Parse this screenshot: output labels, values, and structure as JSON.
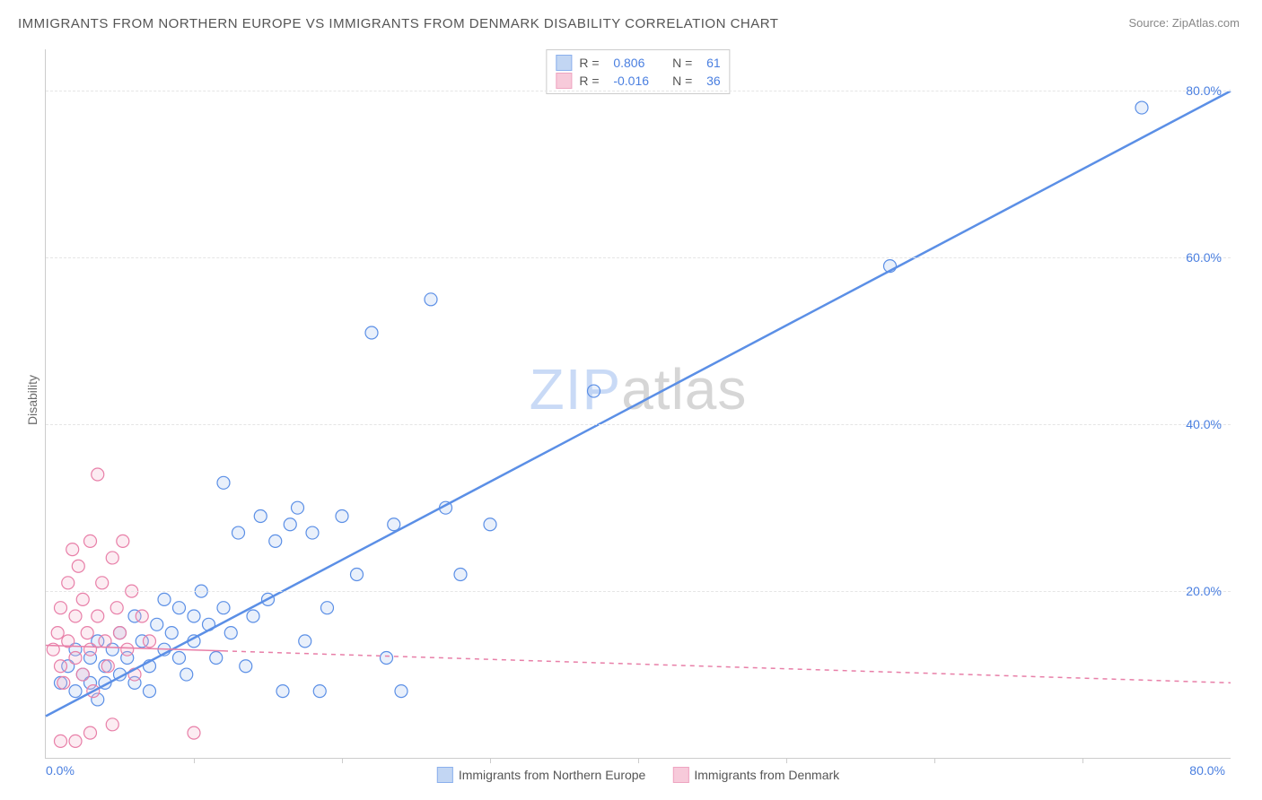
{
  "title": "IMMIGRANTS FROM NORTHERN EUROPE VS IMMIGRANTS FROM DENMARK DISABILITY CORRELATION CHART",
  "source_label": "Source: ",
  "source_name": "ZipAtlas.com",
  "ylabel": "Disability",
  "watermark": {
    "part1": "ZIP",
    "part2": "atlas"
  },
  "chart": {
    "type": "scatter",
    "xlim": [
      0,
      80
    ],
    "ylim": [
      0,
      85
    ],
    "xtick_start": "0.0%",
    "xtick_end": "80.0%",
    "xtick_marks": [
      10,
      20,
      30,
      40,
      50,
      60,
      70
    ],
    "yticks": [
      {
        "v": 20,
        "label": "20.0%"
      },
      {
        "v": 40,
        "label": "40.0%"
      },
      {
        "v": 60,
        "label": "60.0%"
      },
      {
        "v": 80,
        "label": "80.0%"
      }
    ],
    "grid_color": "#e5e5e5",
    "axis_color": "#cccccc",
    "ytick_color": "#4a7fe0",
    "xtick_color": "#4a7fe0",
    "marker_radius": 7,
    "marker_stroke_width": 1.2,
    "marker_fill_opacity": 0.25,
    "series": [
      {
        "id": "northern_europe",
        "name": "Immigrants from Northern Europe",
        "color": "#5b8fe6",
        "fill": "#a9c5ef",
        "R": "0.806",
        "N": "61",
        "trend": {
          "x1": 0,
          "y1": 5,
          "x2": 80,
          "y2": 80,
          "dash": "none",
          "width": 2.5
        },
        "points": [
          [
            1,
            9
          ],
          [
            1.5,
            11
          ],
          [
            2,
            8
          ],
          [
            2,
            13
          ],
          [
            2.5,
            10
          ],
          [
            3,
            9
          ],
          [
            3,
            12
          ],
          [
            3.5,
            7
          ],
          [
            3.5,
            14
          ],
          [
            4,
            11
          ],
          [
            4,
            9
          ],
          [
            4.5,
            13
          ],
          [
            5,
            10
          ],
          [
            5,
            15
          ],
          [
            5.5,
            12
          ],
          [
            6,
            9
          ],
          [
            6,
            17
          ],
          [
            6.5,
            14
          ],
          [
            7,
            11
          ],
          [
            7,
            8
          ],
          [
            7.5,
            16
          ],
          [
            8,
            13
          ],
          [
            8,
            19
          ],
          [
            8.5,
            15
          ],
          [
            9,
            12
          ],
          [
            9,
            18
          ],
          [
            9.5,
            10
          ],
          [
            10,
            17
          ],
          [
            10,
            14
          ],
          [
            10.5,
            20
          ],
          [
            11,
            16
          ],
          [
            11.5,
            12
          ],
          [
            12,
            18
          ],
          [
            12,
            33
          ],
          [
            12.5,
            15
          ],
          [
            13,
            27
          ],
          [
            13.5,
            11
          ],
          [
            14,
            17
          ],
          [
            14.5,
            29
          ],
          [
            15,
            19
          ],
          [
            15.5,
            26
          ],
          [
            16,
            8
          ],
          [
            16.5,
            28
          ],
          [
            17,
            30
          ],
          [
            17.5,
            14
          ],
          [
            18,
            27
          ],
          [
            18.5,
            8
          ],
          [
            19,
            18
          ],
          [
            20,
            29
          ],
          [
            21,
            22
          ],
          [
            22,
            51
          ],
          [
            23,
            12
          ],
          [
            23.5,
            28
          ],
          [
            24,
            8
          ],
          [
            26,
            55
          ],
          [
            27,
            30
          ],
          [
            28,
            22
          ],
          [
            30,
            28
          ],
          [
            37,
            44
          ],
          [
            57,
            59
          ],
          [
            74,
            78
          ]
        ]
      },
      {
        "id": "denmark",
        "name": "Immigrants from Denmark",
        "color": "#e87fa8",
        "fill": "#f4b4cb",
        "R": "-0.016",
        "N": "36",
        "trend": {
          "x1": 0,
          "y1": 13.5,
          "x2": 80,
          "y2": 9,
          "dash": "5,5",
          "width": 1.5
        },
        "trend_solid_until": 12,
        "points": [
          [
            0.5,
            13
          ],
          [
            0.8,
            15
          ],
          [
            1,
            11
          ],
          [
            1,
            18
          ],
          [
            1.2,
            9
          ],
          [
            1.5,
            21
          ],
          [
            1.5,
            14
          ],
          [
            1.8,
            25
          ],
          [
            2,
            12
          ],
          [
            2,
            17
          ],
          [
            2.2,
            23
          ],
          [
            2.5,
            10
          ],
          [
            2.5,
            19
          ],
          [
            2.8,
            15
          ],
          [
            3,
            26
          ],
          [
            3,
            13
          ],
          [
            3.2,
            8
          ],
          [
            3.5,
            34
          ],
          [
            3.5,
            17
          ],
          [
            3.8,
            21
          ],
          [
            4,
            14
          ],
          [
            4.2,
            11
          ],
          [
            4.5,
            24
          ],
          [
            4.8,
            18
          ],
          [
            5,
            15
          ],
          [
            5.2,
            26
          ],
          [
            5.5,
            13
          ],
          [
            5.8,
            20
          ],
          [
            6,
            10
          ],
          [
            6.5,
            17
          ],
          [
            7,
            14
          ],
          [
            1,
            2
          ],
          [
            2,
            2
          ],
          [
            3,
            3
          ],
          [
            4.5,
            4
          ],
          [
            10,
            3
          ]
        ]
      }
    ],
    "legend_top": {
      "border_color": "#cccccc",
      "r_label": "R =",
      "n_label": "N =",
      "value_color": "#4a7fe0"
    }
  }
}
